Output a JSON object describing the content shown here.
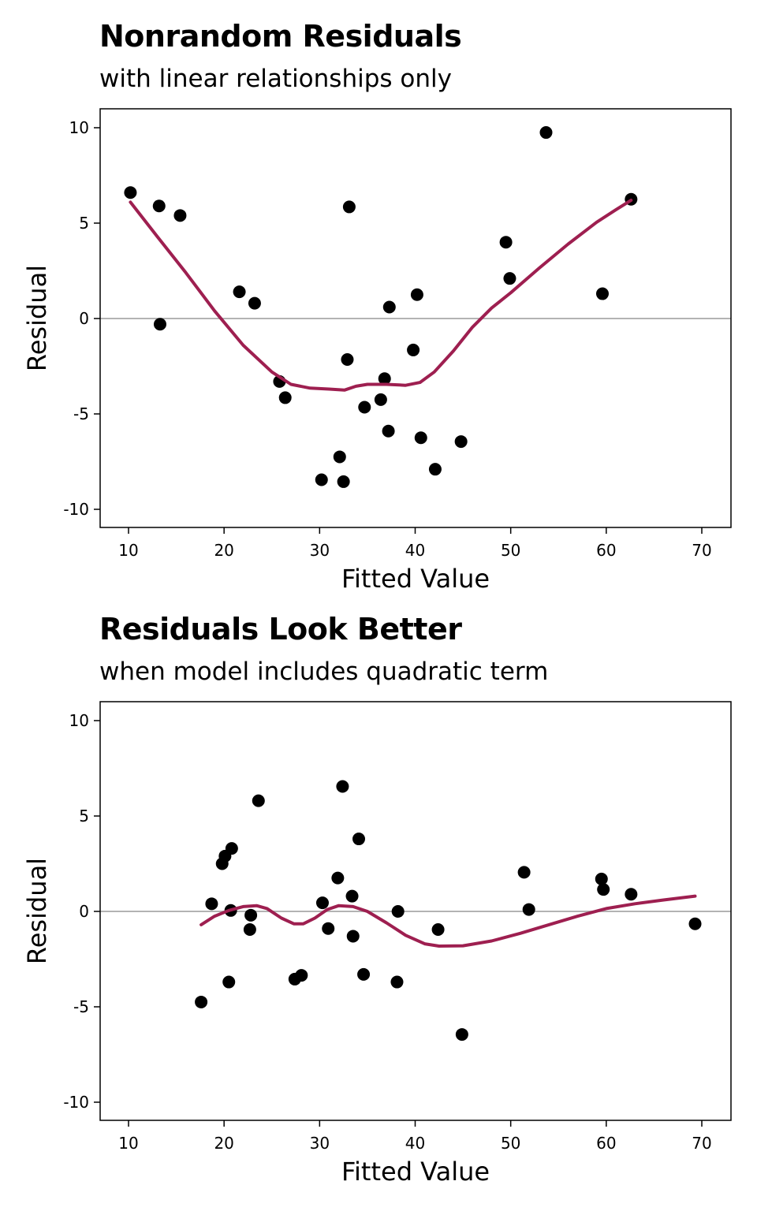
{
  "charts": [
    {
      "title": "Nonrandom Residuals",
      "subtitle": "with linear relationships only"
    },
    {
      "title": "Residuals Look Better",
      "subtitle": "when model includes quadratic term"
    }
  ],
  "chart_data": [
    {
      "type": "scatter",
      "title": "Nonrandom Residuals",
      "subtitle": "with linear relationships only",
      "xlabel": "Fitted Value",
      "ylabel": "Residual",
      "xlim": [
        7,
        70
      ],
      "ylim": [
        -11,
        11
      ],
      "xticks": [
        10,
        20,
        30,
        40,
        50,
        60,
        70
      ],
      "yticks": [
        -10,
        -5,
        0,
        5,
        10
      ],
      "reference_line_y": 0,
      "grid": false,
      "colors": {
        "points": "#000000",
        "smooth": "#9e1f50",
        "reference": "#b3b3b3"
      },
      "points": [
        {
          "x": 10.2,
          "y": 6.6
        },
        {
          "x": 13.2,
          "y": 5.9
        },
        {
          "x": 13.3,
          "y": -0.3
        },
        {
          "x": 15.4,
          "y": 5.4
        },
        {
          "x": 21.6,
          "y": 1.4
        },
        {
          "x": 23.2,
          "y": 0.8
        },
        {
          "x": 25.8,
          "y": -3.3
        },
        {
          "x": 26.4,
          "y": -4.15
        },
        {
          "x": 30.2,
          "y": -8.45
        },
        {
          "x": 32.1,
          "y": -7.25
        },
        {
          "x": 32.5,
          "y": -8.55
        },
        {
          "x": 32.9,
          "y": -2.15
        },
        {
          "x": 33.1,
          "y": 5.85
        },
        {
          "x": 34.7,
          "y": -4.65
        },
        {
          "x": 36.4,
          "y": -4.25
        },
        {
          "x": 36.8,
          "y": -3.15
        },
        {
          "x": 37.2,
          "y": -5.9
        },
        {
          "x": 37.3,
          "y": 0.6
        },
        {
          "x": 39.8,
          "y": -1.65
        },
        {
          "x": 40.2,
          "y": 1.25
        },
        {
          "x": 40.6,
          "y": -6.25
        },
        {
          "x": 42.1,
          "y": -7.9
        },
        {
          "x": 44.8,
          "y": -6.45
        },
        {
          "x": 49.5,
          "y": 4.0
        },
        {
          "x": 49.9,
          "y": 2.1
        },
        {
          "x": 53.7,
          "y": 9.75
        },
        {
          "x": 59.6,
          "y": 1.3
        },
        {
          "x": 62.6,
          "y": 6.25
        }
      ],
      "smooth": [
        {
          "x": 10.2,
          "y": 6.1
        },
        {
          "x": 13.0,
          "y": 4.3
        },
        {
          "x": 16.0,
          "y": 2.4
        },
        {
          "x": 19.0,
          "y": 0.4
        },
        {
          "x": 22.0,
          "y": -1.4
        },
        {
          "x": 25.0,
          "y": -2.8
        },
        {
          "x": 27.0,
          "y": -3.45
        },
        {
          "x": 29.0,
          "y": -3.65
        },
        {
          "x": 31.0,
          "y": -3.7
        },
        {
          "x": 32.6,
          "y": -3.75
        },
        {
          "x": 33.8,
          "y": -3.55
        },
        {
          "x": 35.0,
          "y": -3.45
        },
        {
          "x": 37.0,
          "y": -3.45
        },
        {
          "x": 39.0,
          "y": -3.5
        },
        {
          "x": 40.5,
          "y": -3.35
        },
        {
          "x": 42.0,
          "y": -2.8
        },
        {
          "x": 44.0,
          "y": -1.7
        },
        {
          "x": 46.0,
          "y": -0.45
        },
        {
          "x": 48.0,
          "y": 0.55
        },
        {
          "x": 50.0,
          "y": 1.35
        },
        {
          "x": 53.0,
          "y": 2.65
        },
        {
          "x": 56.0,
          "y": 3.9
        },
        {
          "x": 59.0,
          "y": 5.05
        },
        {
          "x": 61.0,
          "y": 5.7
        },
        {
          "x": 62.6,
          "y": 6.2
        }
      ]
    },
    {
      "type": "scatter",
      "title": "Residuals Look Better",
      "subtitle": "when model includes quadratic term",
      "xlabel": "Fitted Value",
      "ylabel": "Residual",
      "xlim": [
        7,
        70
      ],
      "ylim": [
        -11,
        11
      ],
      "xticks": [
        10,
        20,
        30,
        40,
        50,
        60,
        70
      ],
      "yticks": [
        -10,
        -5,
        0,
        5,
        10
      ],
      "reference_line_y": 0,
      "grid": false,
      "colors": {
        "points": "#000000",
        "smooth": "#9e1f50",
        "reference": "#b3b3b3"
      },
      "points": [
        {
          "x": 17.6,
          "y": -4.75
        },
        {
          "x": 18.7,
          "y": 0.4
        },
        {
          "x": 19.8,
          "y": 2.5
        },
        {
          "x": 20.1,
          "y": 2.9
        },
        {
          "x": 20.5,
          "y": -3.7
        },
        {
          "x": 20.7,
          "y": 0.05
        },
        {
          "x": 20.8,
          "y": 3.3
        },
        {
          "x": 22.7,
          "y": -0.95
        },
        {
          "x": 22.8,
          "y": -0.2
        },
        {
          "x": 23.6,
          "y": 5.8
        },
        {
          "x": 27.4,
          "y": -3.55
        },
        {
          "x": 28.1,
          "y": -3.35
        },
        {
          "x": 30.3,
          "y": 0.45
        },
        {
          "x": 30.9,
          "y": -0.9
        },
        {
          "x": 31.9,
          "y": 1.75
        },
        {
          "x": 32.4,
          "y": 6.55
        },
        {
          "x": 33.4,
          "y": 0.8
        },
        {
          "x": 33.5,
          "y": -1.3
        },
        {
          "x": 34.1,
          "y": 3.8
        },
        {
          "x": 34.6,
          "y": -3.3
        },
        {
          "x": 38.1,
          "y": -3.7
        },
        {
          "x": 38.2,
          "y": 0.0
        },
        {
          "x": 42.4,
          "y": -0.95
        },
        {
          "x": 44.9,
          "y": -6.45
        },
        {
          "x": 51.4,
          "y": 2.05
        },
        {
          "x": 51.9,
          "y": 0.1
        },
        {
          "x": 59.5,
          "y": 1.7
        },
        {
          "x": 59.7,
          "y": 1.15
        },
        {
          "x": 62.6,
          "y": 0.9
        },
        {
          "x": 69.3,
          "y": -0.65
        }
      ],
      "smooth": [
        {
          "x": 17.6,
          "y": -0.7
        },
        {
          "x": 19.0,
          "y": -0.25
        },
        {
          "x": 20.5,
          "y": 0.05
        },
        {
          "x": 22.0,
          "y": 0.25
        },
        {
          "x": 23.4,
          "y": 0.3
        },
        {
          "x": 24.5,
          "y": 0.15
        },
        {
          "x": 26.0,
          "y": -0.35
        },
        {
          "x": 27.3,
          "y": -0.65
        },
        {
          "x": 28.3,
          "y": -0.65
        },
        {
          "x": 29.5,
          "y": -0.35
        },
        {
          "x": 30.8,
          "y": 0.1
        },
        {
          "x": 32.0,
          "y": 0.3
        },
        {
          "x": 33.5,
          "y": 0.25
        },
        {
          "x": 35.0,
          "y": 0.0
        },
        {
          "x": 37.0,
          "y": -0.6
        },
        {
          "x": 39.0,
          "y": -1.25
        },
        {
          "x": 41.0,
          "y": -1.7
        },
        {
          "x": 42.5,
          "y": -1.82
        },
        {
          "x": 45.0,
          "y": -1.8
        },
        {
          "x": 48.0,
          "y": -1.55
        },
        {
          "x": 51.0,
          "y": -1.15
        },
        {
          "x": 54.0,
          "y": -0.7
        },
        {
          "x": 57.0,
          "y": -0.25
        },
        {
          "x": 60.0,
          "y": 0.15
        },
        {
          "x": 63.0,
          "y": 0.4
        },
        {
          "x": 66.0,
          "y": 0.6
        },
        {
          "x": 69.3,
          "y": 0.8
        }
      ]
    }
  ]
}
